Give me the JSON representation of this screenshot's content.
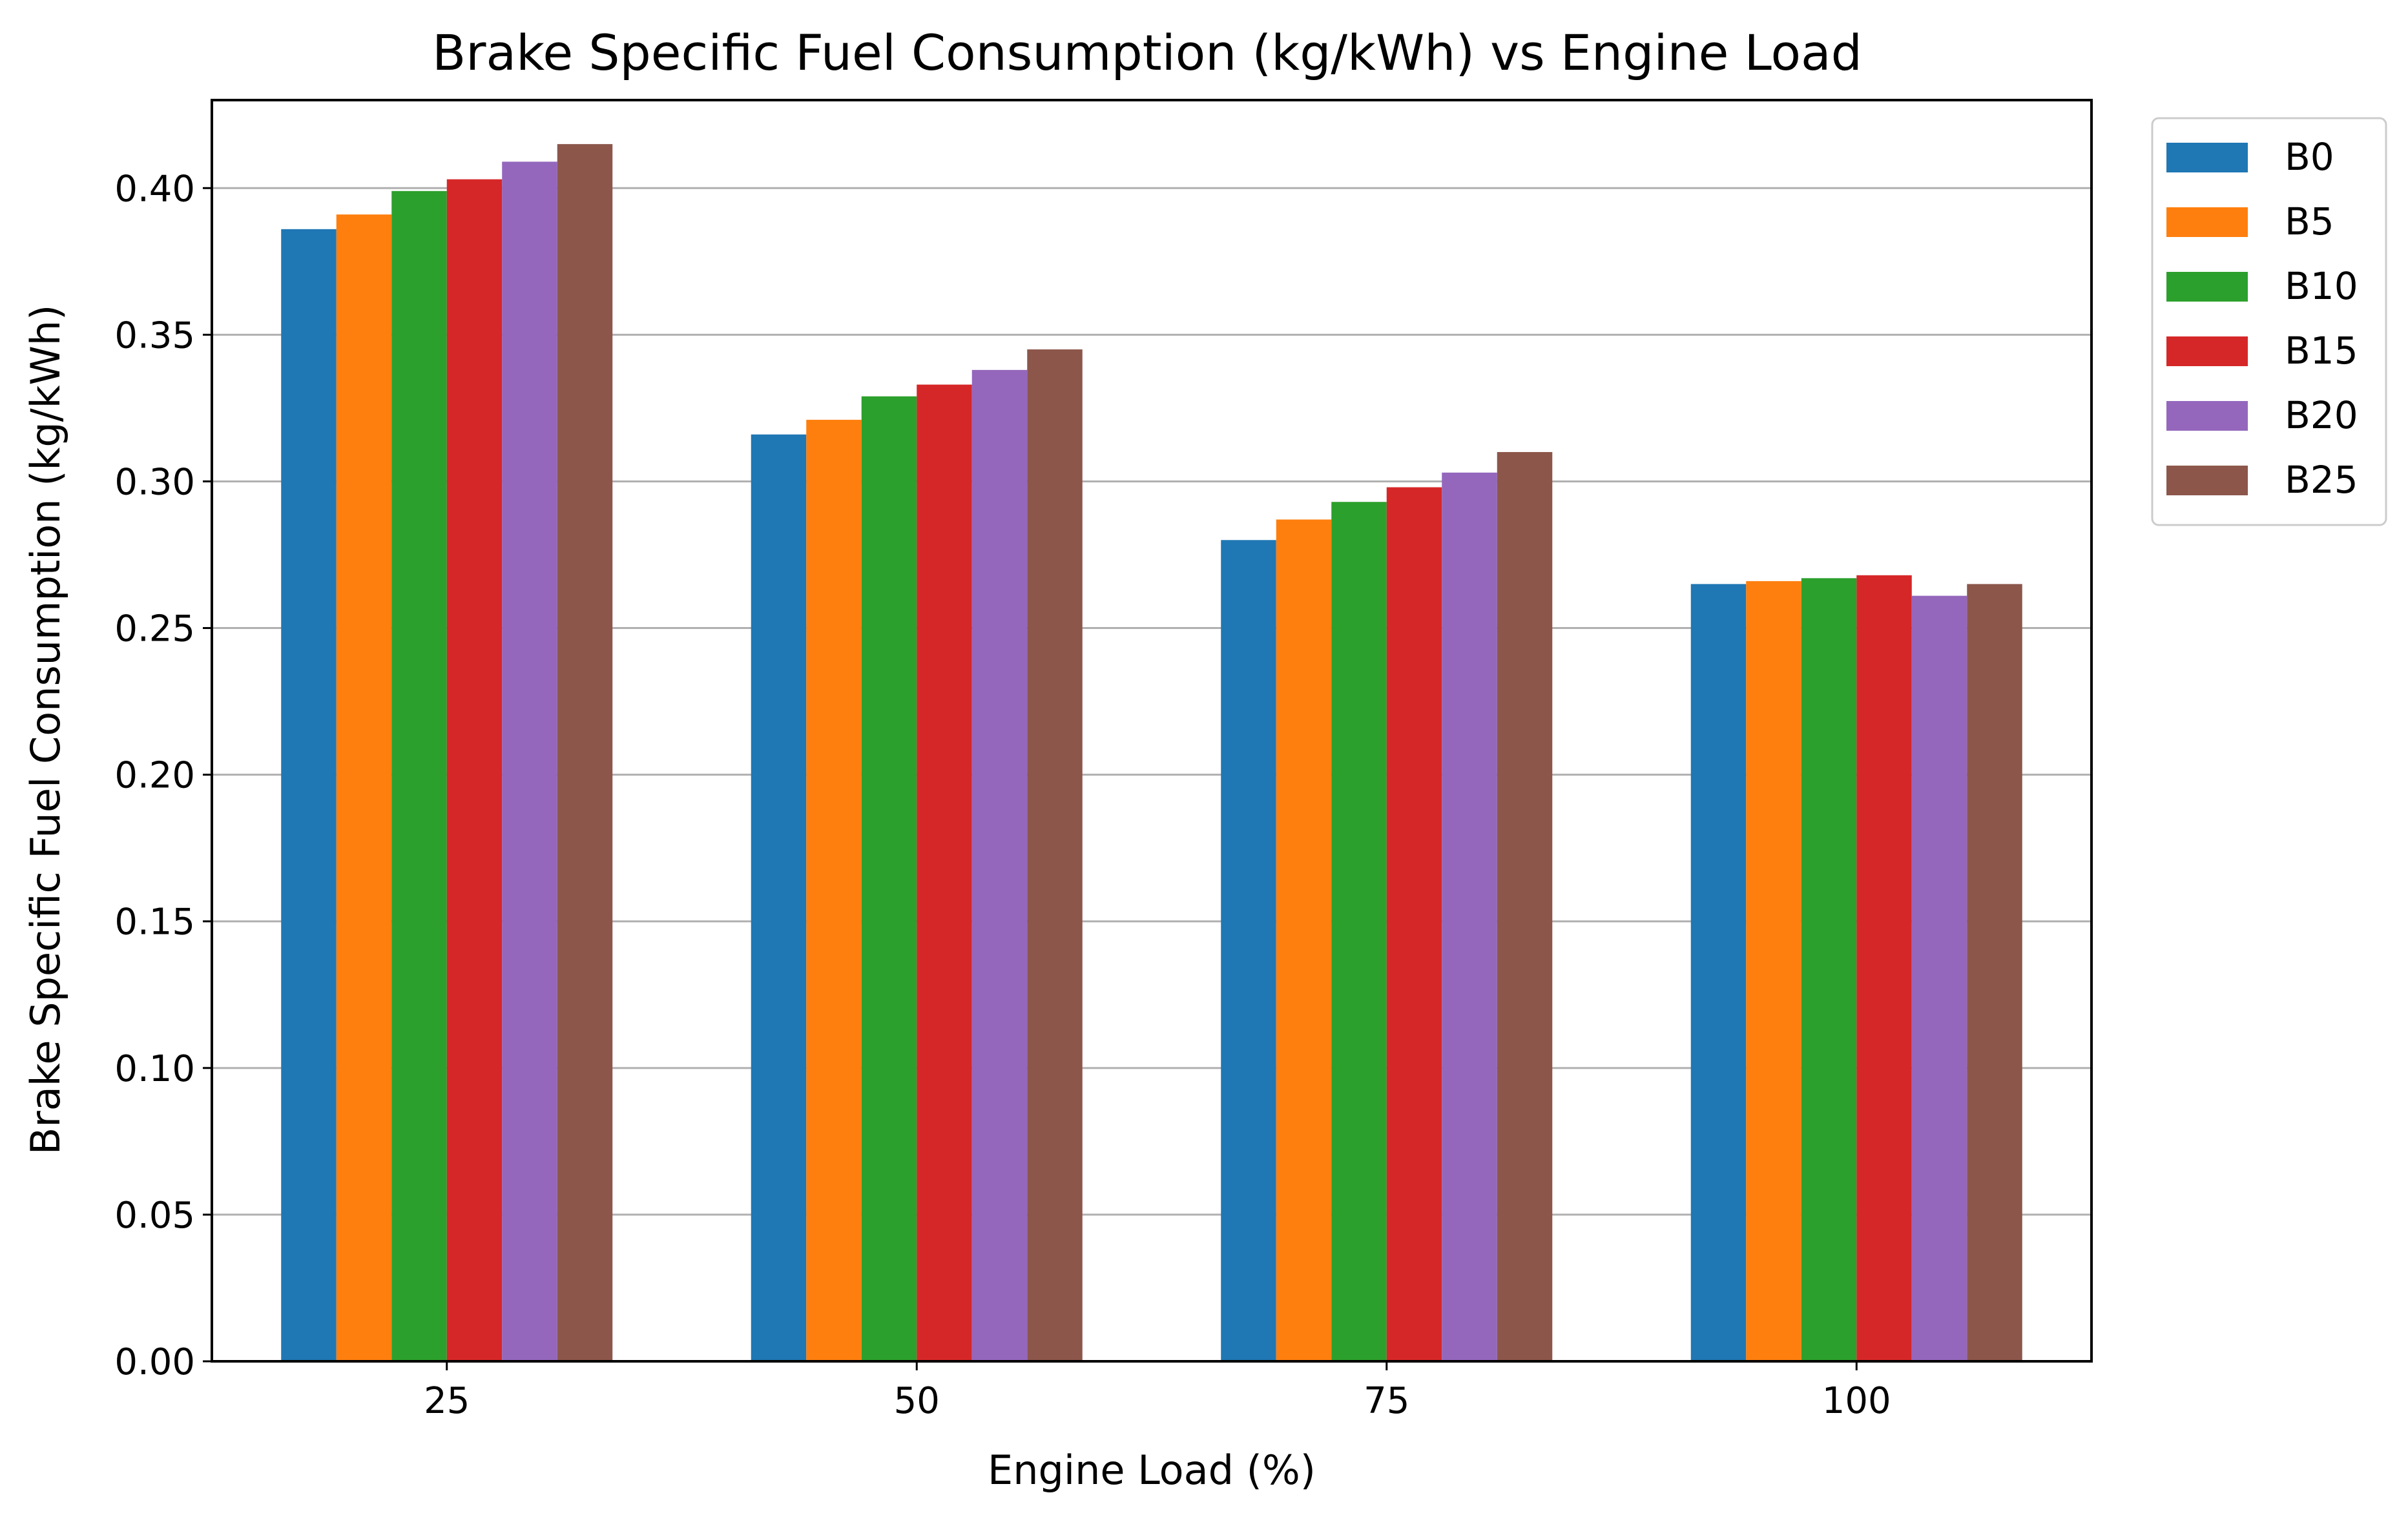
{
  "chart_data": {
    "type": "bar",
    "title": "Brake Specific Fuel Consumption (kg/kWh) vs Engine Load",
    "xlabel": "Engine Load (%)",
    "ylabel": "Brake Specific Fuel Consumption (kg/kWh)",
    "categories": [
      "25",
      "50",
      "75",
      "100"
    ],
    "ylim": [
      0,
      0.43
    ],
    "yticks": [
      "0.00",
      "0.05",
      "0.10",
      "0.15",
      "0.20",
      "0.25",
      "0.30",
      "0.35",
      "0.40"
    ],
    "grid": "horizontal",
    "legend_position": "outside top-right",
    "series": [
      {
        "name": "B0",
        "color": "#1f77b4",
        "values": [
          0.386,
          0.316,
          0.28,
          0.265
        ]
      },
      {
        "name": "B5",
        "color": "#ff7f0e",
        "values": [
          0.391,
          0.321,
          0.287,
          0.266
        ]
      },
      {
        "name": "B10",
        "color": "#2ca02c",
        "values": [
          0.399,
          0.329,
          0.293,
          0.267
        ]
      },
      {
        "name": "B15",
        "color": "#d62728",
        "values": [
          0.403,
          0.333,
          0.298,
          0.268
        ]
      },
      {
        "name": "B20",
        "color": "#9467bd",
        "values": [
          0.409,
          0.338,
          0.303,
          0.261
        ]
      },
      {
        "name": "B25",
        "color": "#8c564b",
        "values": [
          0.415,
          0.345,
          0.31,
          0.265
        ]
      }
    ]
  }
}
